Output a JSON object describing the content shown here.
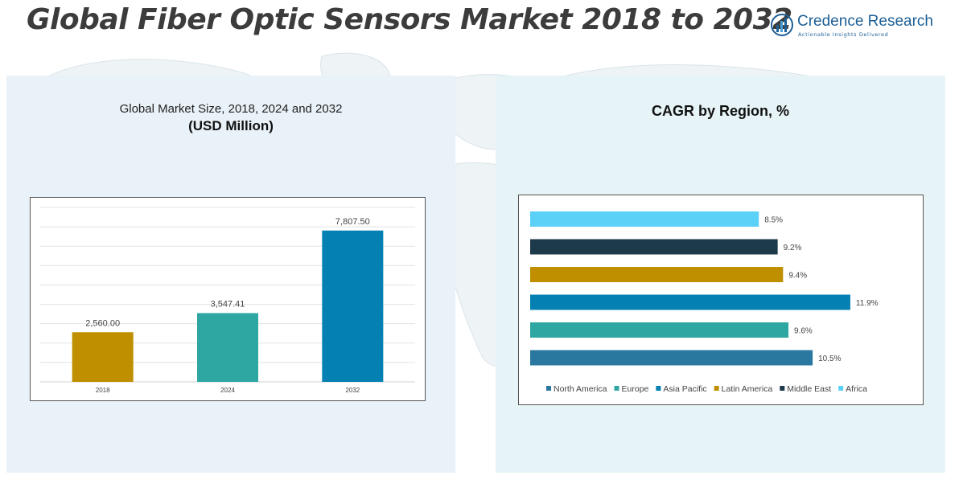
{
  "header": {
    "title": "Global Fiber Optic Sensors Market 2018 to 2032",
    "logo_name": "Credence Research",
    "logo_tagline": "Actionable Insights Delivered"
  },
  "left_panel": {
    "subtitle": "Global Market Size, 2018, 2024 and 2032",
    "unit": "(USD Million)"
  },
  "right_panel": {
    "title": "CAGR by Region, %"
  },
  "chart_data": [
    {
      "type": "bar",
      "orientation": "vertical",
      "categories": [
        "2018",
        "2024",
        "2032"
      ],
      "values": [
        2560.0,
        3547.41,
        7807.5
      ],
      "value_labels": [
        "2,560.00",
        "3,547.41",
        "7,807.50"
      ],
      "colors": [
        "#bf8f00",
        "#2ea6a1",
        "#0480b2"
      ],
      "title": "Global Market Size, 2018, 2024 and 2032",
      "ylabel": "(USD Million)",
      "ylim": [
        0,
        9000
      ],
      "grid": true,
      "legend": "none"
    },
    {
      "type": "bar",
      "orientation": "horizontal",
      "categories": [
        "Africa",
        "Middle East",
        "Latin America",
        "Asia Pacific",
        "Europe",
        "North America"
      ],
      "values": [
        8.5,
        9.2,
        9.4,
        11.9,
        9.6,
        10.5
      ],
      "value_labels": [
        "8.5%",
        "9.2%",
        "9.4%",
        "11.9%",
        "9.6%",
        "10.5%"
      ],
      "colors": [
        "#5bd1f7",
        "#1d3a4a",
        "#bf8f00",
        "#0480b2",
        "#2ea6a1",
        "#2a78a0"
      ],
      "legend_order": [
        "North America",
        "Europe",
        "Asia Pacific",
        "Latin America",
        "Middle East",
        "Africa"
      ],
      "legend_colors": [
        "#2a78a0",
        "#2ea6a1",
        "#0480b2",
        "#bf8f00",
        "#1d3a4a",
        "#5bd1f7"
      ],
      "title": "CAGR by Region, %",
      "xlim": [
        0,
        12.5
      ],
      "grid": false,
      "legend": "bottom"
    }
  ]
}
